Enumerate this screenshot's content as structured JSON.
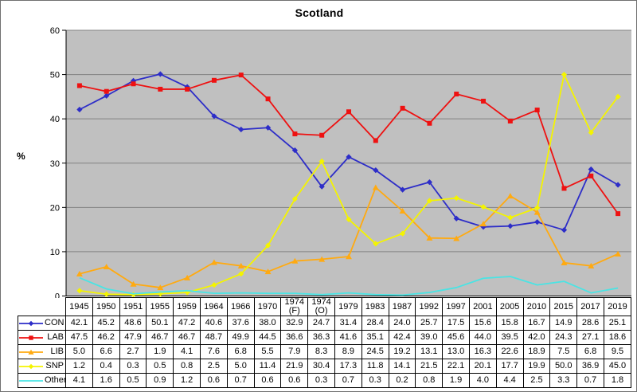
{
  "chart_data": {
    "type": "line",
    "title": "Scotland",
    "ylabel": "%",
    "ylim": [
      0,
      60
    ],
    "ytick_step": 10,
    "grid": "horizontal",
    "legend_position": "table-left",
    "plot_bg_color": "#c0c0c0",
    "gridline_color": "#828282",
    "axis_color": "#000000",
    "categories": [
      "1945",
      "1950",
      "1951",
      "1955",
      "1959",
      "1964",
      "1966",
      "1970",
      "1974 (F)",
      "1974 (O)",
      "1979",
      "1983",
      "1987",
      "1992",
      "1997",
      "2001",
      "2005",
      "2010",
      "2015",
      "2017",
      "2019"
    ],
    "series": [
      {
        "name": "CON",
        "color": "#2d2dc8",
        "marker": "diamond",
        "values": [
          42.1,
          45.2,
          48.6,
          50.1,
          47.2,
          40.6,
          37.6,
          38.0,
          32.9,
          24.7,
          31.4,
          28.4,
          24.0,
          25.7,
          17.5,
          15.6,
          15.8,
          16.7,
          14.9,
          28.6,
          25.1
        ]
      },
      {
        "name": "LAB",
        "color": "#ee1111",
        "marker": "square",
        "values": [
          47.5,
          46.2,
          47.9,
          46.7,
          46.7,
          48.7,
          49.9,
          44.5,
          36.6,
          36.3,
          41.6,
          35.1,
          42.4,
          39.0,
          45.6,
          44.0,
          39.5,
          42.0,
          24.3,
          27.1,
          18.6
        ]
      },
      {
        "name": "LIB",
        "color": "#ffaa11",
        "marker": "triangle",
        "values": [
          5.0,
          6.6,
          2.7,
          1.9,
          4.1,
          7.6,
          6.8,
          5.5,
          7.9,
          8.3,
          8.9,
          24.5,
          19.2,
          13.1,
          13.0,
          16.3,
          22.6,
          18.9,
          7.5,
          6.8,
          9.5
        ]
      },
      {
        "name": "SNP",
        "color": "#f4f400",
        "marker": "diamond",
        "values": [
          1.2,
          0.4,
          0.3,
          0.5,
          0.8,
          2.5,
          5.0,
          11.4,
          21.9,
          30.4,
          17.3,
          11.8,
          14.1,
          21.5,
          22.1,
          20.1,
          17.7,
          19.9,
          50.0,
          36.9,
          45.0
        ]
      },
      {
        "name": "Other",
        "color": "#4ae4e4",
        "marker": "none",
        "values": [
          4.1,
          1.6,
          0.5,
          0.9,
          1.2,
          0.6,
          0.7,
          0.6,
          0.6,
          0.3,
          0.7,
          0.3,
          0.2,
          0.8,
          1.9,
          4.0,
          4.4,
          2.5,
          3.3,
          0.7,
          1.8
        ]
      }
    ]
  }
}
